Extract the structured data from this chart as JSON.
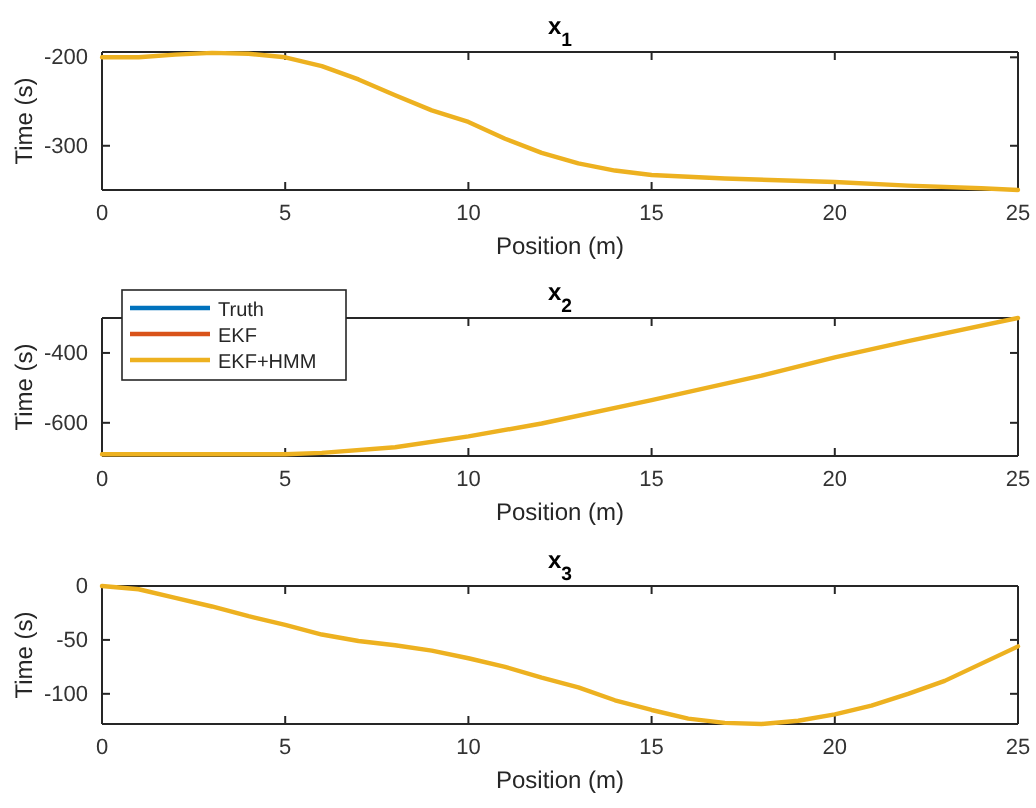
{
  "chart_data": [
    {
      "type": "line",
      "title": "x$_{1}$",
      "xlabel": "Position (m)",
      "ylabel": "Time (s)",
      "xlim": [
        0,
        25
      ],
      "xticks": [
        0,
        5,
        10,
        15,
        20,
        25
      ],
      "ylim": [
        -350,
        -194
      ],
      "yticks": [
        -300,
        -200
      ],
      "line_style": "solid",
      "x": [
        0,
        1,
        2,
        3,
        4,
        5,
        6,
        7,
        8,
        9,
        10,
        11,
        12,
        13,
        14,
        15,
        17,
        20,
        22,
        24,
        25
      ],
      "series": [
        {
          "color": "#edb120",
          "values": [
            -200,
            -200,
            -197,
            -195,
            -196,
            -200,
            -210,
            -225,
            -243,
            -260,
            -273,
            -292,
            -308,
            -320,
            -328,
            -333,
            -337,
            -341,
            -345,
            -348,
            -350
          ]
        }
      ]
    },
    {
      "type": "line",
      "title": "x$_{2}$",
      "xlabel": "Position (m)",
      "ylabel": "Time (s)",
      "xlim": [
        0,
        25
      ],
      "xticks": [
        0,
        5,
        10,
        15,
        20,
        25
      ],
      "ylim": [
        -695,
        -300
      ],
      "yticks": [
        -600,
        -400
      ],
      "line_style": "solid",
      "legend": "top left",
      "x": [
        0,
        2,
        4,
        5,
        6,
        8,
        10,
        12,
        15,
        18,
        20,
        22,
        25
      ],
      "series": [
        {
          "name": "Truth",
          "color": "#0072bd",
          "values": [
            null,
            null,
            null,
            null,
            null,
            null,
            null,
            null,
            null,
            null,
            null,
            null,
            null
          ]
        },
        {
          "name": "EKF",
          "color": "#d95319",
          "values": [
            null,
            null,
            null,
            null,
            null,
            null,
            null,
            null,
            null,
            null,
            null,
            null,
            null
          ]
        },
        {
          "name": "EKF+HMM",
          "color": "#edb120",
          "values": [
            -690,
            -690,
            -690,
            -690,
            -686,
            -670,
            -639,
            -602,
            -535,
            -465,
            -413,
            -366,
            -300
          ]
        }
      ]
    },
    {
      "type": "line",
      "title": "x$_{3}$",
      "xlabel": "Position (m)",
      "ylabel": "Time (s)",
      "xlim": [
        0,
        25
      ],
      "xticks": [
        0,
        5,
        10,
        15,
        20,
        25
      ],
      "ylim": [
        -128,
        0
      ],
      "yticks": [
        -100,
        -50,
        0
      ],
      "line_style": "solid",
      "x": [
        0,
        1,
        2,
        3,
        4,
        5,
        6,
        7,
        8,
        9,
        10,
        11,
        12,
        13,
        14,
        15,
        16,
        17,
        18,
        19,
        20,
        21,
        22,
        23,
        24,
        25
      ],
      "series": [
        {
          "color": "#edb120",
          "values": [
            0,
            -3,
            -11,
            -19,
            -28,
            -36,
            -45,
            -51,
            -55,
            -60,
            -67,
            -75,
            -85,
            -94,
            -106,
            -115,
            -123,
            -127,
            -128,
            -125,
            -119,
            -111,
            -100,
            -88,
            -72,
            -56
          ]
        }
      ]
    }
  ]
}
